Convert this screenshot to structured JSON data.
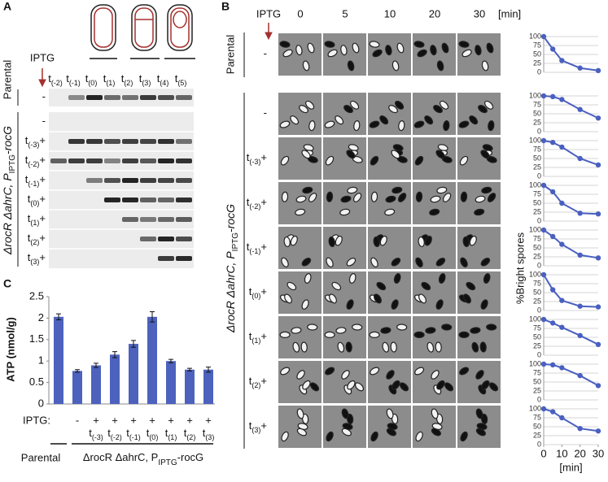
{
  "panel_a": {
    "letter": "A",
    "iptg": "IPTG",
    "parental": "Parental",
    "lanes": [
      [
        "t",
        "(-2)"
      ],
      [
        "t",
        "(-1)"
      ],
      [
        "t",
        "(0)"
      ],
      [
        "t",
        "(1)"
      ],
      [
        "t",
        "(2)"
      ],
      [
        "t",
        "(3)"
      ],
      [
        "t",
        "(4)"
      ],
      [
        "t",
        "(5)"
      ]
    ],
    "strain": {
      "pre": "ΔrocR ΔahrC, P",
      "sub": "IPTG",
      "post": "-rocG"
    },
    "rows": [
      {
        "iptg": "-"
      },
      {
        "iptg": "-"
      },
      {
        "t": [
          "t",
          "(-3)"
        ],
        "iptg": "+"
      },
      {
        "t": [
          "t",
          "(-2)"
        ],
        "iptg": "+"
      },
      {
        "t": [
          "t",
          "(-1)"
        ],
        "iptg": "+"
      },
      {
        "t": [
          "t",
          "(0)"
        ],
        "iptg": "+"
      },
      {
        "t": [
          "t",
          "(1)"
        ],
        "iptg": "+"
      },
      {
        "t": [
          "t",
          "(2)"
        ],
        "iptg": "+"
      },
      {
        "t": [
          "t",
          "(3)"
        ],
        "iptg": "+"
      }
    ]
  },
  "panel_b": {
    "letter": "B",
    "iptg": "IPTG",
    "times": [
      "0",
      "5",
      "10",
      "20",
      "30"
    ],
    "unit": "[min]",
    "parental": "Parental",
    "ylabel": "%Bright spores",
    "strain": {
      "pre": "ΔrocR ΔahrC, P",
      "sub": "IPTG",
      "post": "-rocG"
    },
    "rows": [
      {
        "iptg": "-"
      },
      {
        "iptg": "-"
      },
      {
        "t": [
          "t",
          "(-3)"
        ],
        "iptg": "+"
      },
      {
        "t": [
          "t",
          "(-2)"
        ],
        "iptg": "+"
      },
      {
        "t": [
          "t",
          "(-1)"
        ],
        "iptg": "+"
      },
      {
        "t": [
          "t",
          "(0)"
        ],
        "iptg": "+"
      },
      {
        "t": [
          "t",
          "(1)"
        ],
        "iptg": "+"
      },
      {
        "t": [
          "t",
          "(2)"
        ],
        "iptg": "+"
      },
      {
        "t": [
          "t",
          "(3)"
        ],
        "iptg": "+"
      }
    ]
  },
  "chart_data": [
    {
      "type": "bar",
      "letter": "C",
      "ylabel": "ATP (nmol/g)",
      "color": "#4d62bd",
      "ylim": [
        0,
        2.5
      ],
      "yticks": [
        0,
        0.5,
        1,
        1.5,
        2,
        2.5
      ],
      "values": [
        2.03,
        0.77,
        0.9,
        1.15,
        1.4,
        2.03,
        1.0,
        0.8,
        0.8
      ],
      "errors": [
        0.07,
        0.03,
        0.05,
        0.07,
        0.08,
        0.12,
        0.04,
        0.03,
        0.06
      ],
      "iptg_label": "IPTG:",
      "iptg": [
        null,
        "-",
        "+",
        "+",
        "+",
        "+",
        "+",
        "+",
        "+"
      ],
      "timing": [
        null,
        null,
        [
          "t",
          "(-3)"
        ],
        [
          "t",
          "(-2)"
        ],
        [
          "t",
          "(-1)"
        ],
        [
          "t",
          "(0)"
        ],
        [
          "t",
          "(1)"
        ],
        [
          "t",
          "(2)"
        ],
        [
          "t",
          "(3)"
        ]
      ],
      "group_parental": "Parental",
      "group_strain": {
        "pre": "ΔrocR ΔahrC, P",
        "sub": "IPTG",
        "post": "-rocG"
      }
    },
    {
      "type": "line",
      "x": [
        0,
        5,
        10,
        20,
        30
      ],
      "values": [
        100,
        65,
        33,
        12,
        5
      ],
      "color": "#4a60c0",
      "xlim": [
        0,
        30
      ],
      "ylim": [
        0,
        100
      ],
      "yticks": [
        0,
        25,
        50,
        75,
        100
      ],
      "grid": true
    },
    {
      "type": "line",
      "x": [
        0,
        5,
        10,
        20,
        30
      ],
      "values": [
        100,
        98,
        90,
        62,
        38
      ],
      "color": "#4a60c0",
      "xlim": [
        0,
        30
      ],
      "ylim": [
        0,
        100
      ],
      "yticks": [
        0,
        25,
        50,
        75,
        100
      ],
      "grid": true
    },
    {
      "type": "line",
      "x": [
        0,
        5,
        10,
        20,
        30
      ],
      "values": [
        100,
        95,
        82,
        50,
        32
      ],
      "color": "#4a60c0",
      "xlim": [
        0,
        30
      ],
      "ylim": [
        0,
        100
      ],
      "yticks": [
        0,
        25,
        50,
        75,
        100
      ],
      "grid": true
    },
    {
      "type": "line",
      "x": [
        0,
        5,
        10,
        20,
        30
      ],
      "values": [
        100,
        82,
        50,
        22,
        20
      ],
      "color": "#4a60c0",
      "xlim": [
        0,
        30
      ],
      "ylim": [
        0,
        100
      ],
      "yticks": [
        0,
        25,
        50,
        75,
        100
      ],
      "grid": true
    },
    {
      "type": "line",
      "x": [
        0,
        5,
        10,
        20,
        30
      ],
      "values": [
        100,
        82,
        60,
        30,
        22
      ],
      "color": "#4a60c0",
      "xlim": [
        0,
        30
      ],
      "ylim": [
        0,
        100
      ],
      "yticks": [
        0,
        25,
        50,
        75,
        100
      ],
      "grid": true
    },
    {
      "type": "line",
      "x": [
        0,
        5,
        10,
        20,
        30
      ],
      "values": [
        100,
        58,
        28,
        12,
        10
      ],
      "color": "#4a60c0",
      "xlim": [
        0,
        30
      ],
      "ylim": [
        0,
        100
      ],
      "yticks": [
        0,
        25,
        50,
        75,
        100
      ],
      "grid": true
    },
    {
      "type": "line",
      "x": [
        0,
        5,
        10,
        20,
        30
      ],
      "values": [
        100,
        90,
        78,
        55,
        30
      ],
      "color": "#4a60c0",
      "xlim": [
        0,
        30
      ],
      "ylim": [
        0,
        100
      ],
      "yticks": [
        0,
        25,
        50,
        75,
        100
      ],
      "grid": true
    },
    {
      "type": "line",
      "x": [
        0,
        5,
        10,
        20,
        30
      ],
      "values": [
        100,
        98,
        90,
        68,
        40
      ],
      "color": "#4a60c0",
      "xlim": [
        0,
        30
      ],
      "ylim": [
        0,
        100
      ],
      "yticks": [
        0,
        25,
        50,
        75,
        100
      ],
      "grid": true
    },
    {
      "type": "line",
      "x": [
        0,
        5,
        10,
        20,
        30
      ],
      "values": [
        100,
        92,
        75,
        45,
        38
      ],
      "color": "#4a60c0",
      "xlim": [
        0,
        30
      ],
      "ylim": [
        0,
        100
      ],
      "yticks": [
        0,
        25,
        50,
        75,
        100
      ],
      "grid": true,
      "xticks": [
        0,
        10,
        20,
        30
      ],
      "xlabel": "[min]"
    }
  ]
}
